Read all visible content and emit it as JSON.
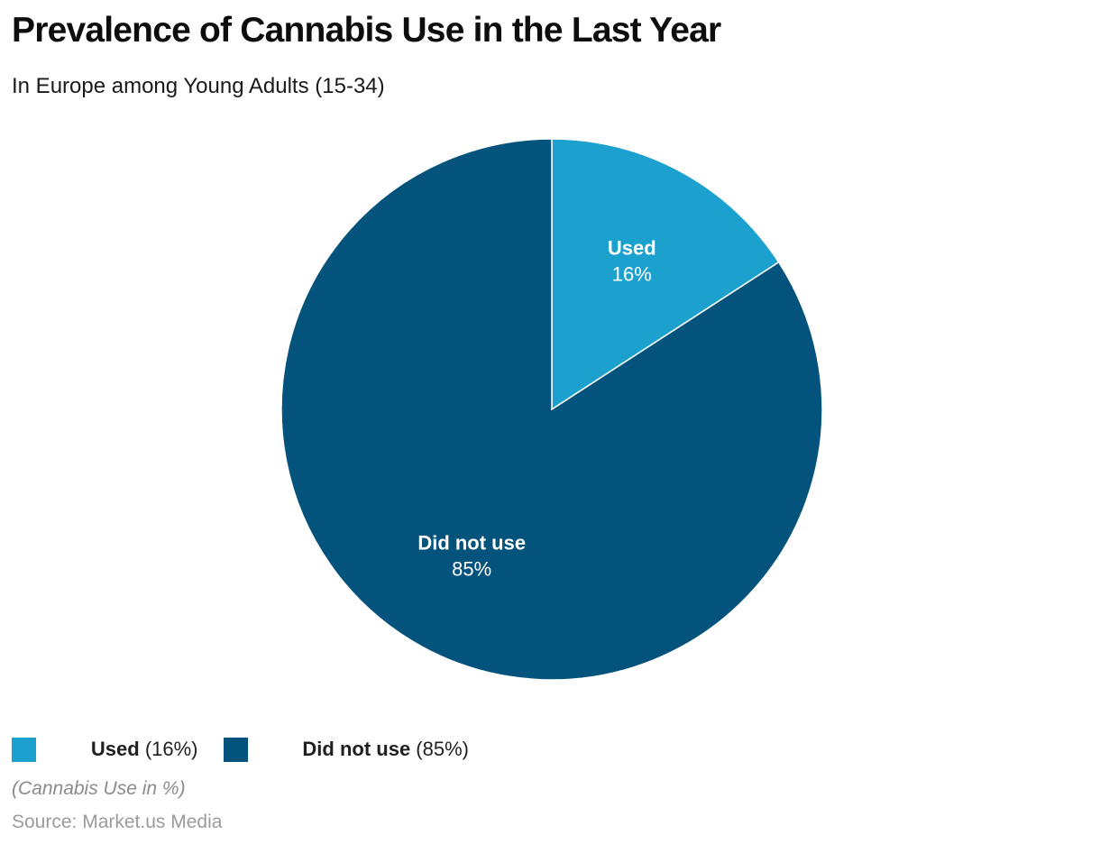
{
  "header": {
    "title": "Prevalence of Cannabis Use in the Last Year",
    "subtitle": "In Europe among Young Adults (15-34)"
  },
  "chart_data": {
    "type": "pie",
    "title": "Prevalence of Cannabis Use in the Last Year",
    "subtitle": "In Europe among Young Adults (15-34)",
    "categories": [
      "Used",
      "Did not use"
    ],
    "values": [
      16,
      85
    ],
    "unit": "%",
    "colors": [
      "#1ca0ce",
      "#04537c"
    ],
    "slice_labels": [
      {
        "name": "Used",
        "pct": "16%"
      },
      {
        "name": "Did not use",
        "pct": "85%"
      }
    ],
    "label_color": "#ffffff",
    "start_position": "top",
    "direction": "clockwise",
    "legend_position": "bottom-left"
  },
  "legend": {
    "items": [
      {
        "name": "Used",
        "value_text": " (16%)",
        "color": "#1ca0ce"
      },
      {
        "name": "Did not use",
        "value_text": " (85%)",
        "color": "#04537c"
      }
    ]
  },
  "footer": {
    "note": "(Cannabis Use in %)",
    "source": "Source: Market.us Media"
  }
}
